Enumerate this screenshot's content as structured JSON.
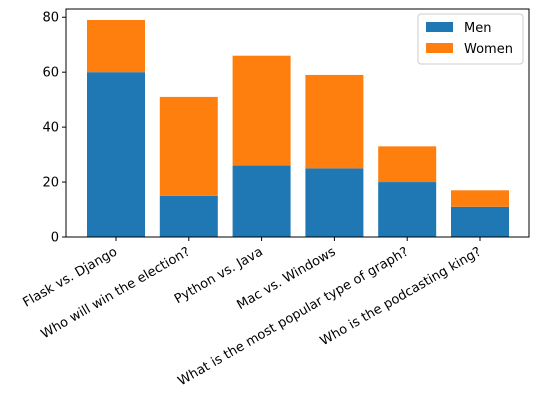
{
  "chart_data": {
    "type": "bar",
    "stacked": true,
    "title": "",
    "xlabel": "",
    "ylabel": "",
    "categories": [
      "Flask vs. Django",
      "Who will win the election?",
      "Python vs. Java",
      "Mac vs. Windows",
      "What is the most popular type of graph?",
      "Who is the podcasting king?"
    ],
    "series": [
      {
        "name": "Men",
        "color": "#1f77b4",
        "values": [
          60,
          15,
          26,
          25,
          20,
          11
        ]
      },
      {
        "name": "Women",
        "color": "#ff7f0e",
        "values": [
          19,
          36,
          40,
          34,
          13,
          6
        ]
      }
    ],
    "ylim": [
      0,
      83
    ],
    "yticks": [
      0,
      20,
      40,
      60,
      80
    ],
    "grid": false,
    "legend_position": "top-right"
  }
}
